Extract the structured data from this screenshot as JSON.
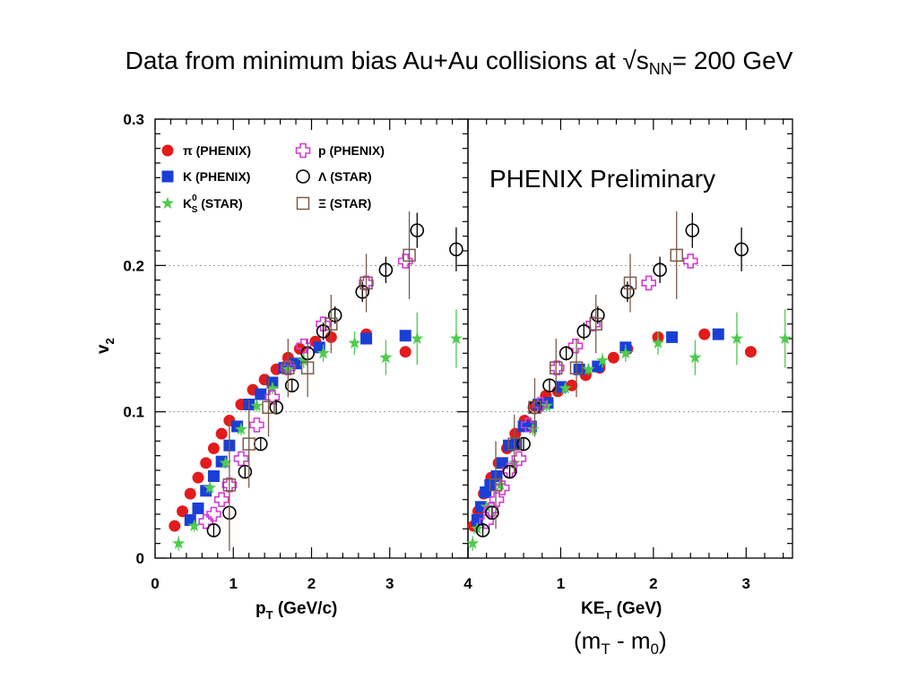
{
  "title": {
    "main": "Data from minimum bias Au+Au collisions at √s",
    "sub": "NN",
    "tail": "= 200 GeV"
  },
  "annotation": "PHENIX Preliminary",
  "footnote": {
    "a": "(m",
    "sub1": "T",
    "b": " - m",
    "sub2": "0",
    "c": ")"
  },
  "colors": {
    "pi": "#e31b1b",
    "K": "#1a3fd6",
    "K0s": "#4ecb4e",
    "p": "#d63ad6",
    "Lambda": "#000000",
    "Xi": "#7a5c4a"
  },
  "chart_data": [
    {
      "type": "scatter",
      "xlabel": "p",
      "xlabel_sub": "T",
      "xlabel_unit": " (GeV/c)",
      "ylabel": "v",
      "ylabel_sub": "2",
      "xlim": [
        0,
        4
      ],
      "ylim": [
        0,
        0.3
      ],
      "xticks": [
        "0",
        "1",
        "2",
        "3",
        "4"
      ],
      "yticks": [
        "0",
        "0.1",
        "0.2",
        "0.3"
      ],
      "legend": [
        {
          "key": "pi",
          "label": "π (PHENIX)"
        },
        {
          "key": "K",
          "label": "K (PHENIX)"
        },
        {
          "key": "K0s",
          "label": "K",
          "sub": "S",
          "sup": "0",
          "tail": " (STAR)"
        },
        {
          "key": "p",
          "label": "p (PHENIX)"
        },
        {
          "key": "Lambda",
          "label": "Λ (STAR)"
        },
        {
          "key": "Xi",
          "label": "Ξ (STAR)"
        }
      ],
      "series": [
        {
          "key": "pi",
          "marker": "circle-filled",
          "x": [
            0.25,
            0.35,
            0.45,
            0.55,
            0.65,
            0.75,
            0.85,
            0.95,
            1.1,
            1.25,
            1.4,
            1.55,
            1.7,
            1.85,
            2.05,
            2.25,
            2.7,
            3.2
          ],
          "y": [
            0.022,
            0.032,
            0.044,
            0.055,
            0.065,
            0.075,
            0.085,
            0.094,
            0.105,
            0.115,
            0.122,
            0.129,
            0.137,
            0.143,
            0.148,
            0.151,
            0.153,
            0.141
          ]
        },
        {
          "key": "K",
          "marker": "square-filled",
          "x": [
            0.45,
            0.55,
            0.65,
            0.75,
            0.85,
            0.95,
            1.05,
            1.2,
            1.35,
            1.5,
            1.65,
            1.8,
            2.1,
            2.7,
            3.2
          ],
          "y": [
            0.026,
            0.034,
            0.046,
            0.056,
            0.066,
            0.077,
            0.09,
            0.105,
            0.112,
            0.12,
            0.13,
            0.133,
            0.144,
            0.15,
            0.152
          ]
        },
        {
          "key": "K0s",
          "marker": "star",
          "x": [
            0.3,
            0.5,
            0.7,
            0.9,
            1.1,
            1.3,
            1.5,
            1.7,
            1.9,
            2.15,
            2.55,
            2.95,
            3.35,
            3.85
          ],
          "y": [
            0.01,
            0.022,
            0.048,
            0.065,
            0.088,
            0.104,
            0.116,
            0.129,
            0.135,
            0.14,
            0.147,
            0.137,
            0.15,
            0.15
          ],
          "yerr": [
            0.005,
            0.004,
            0.004,
            0.004,
            0.004,
            0.004,
            0.004,
            0.004,
            0.005,
            0.006,
            0.008,
            0.012,
            0.018,
            0.02
          ]
        },
        {
          "key": "p",
          "marker": "cross-open",
          "x": [
            0.65,
            0.75,
            0.85,
            0.95,
            1.1,
            1.3,
            1.5,
            1.7,
            1.9,
            2.15,
            2.7,
            3.2
          ],
          "y": [
            0.025,
            0.03,
            0.04,
            0.05,
            0.068,
            0.091,
            0.11,
            0.13,
            0.145,
            0.16,
            0.188,
            0.203
          ]
        },
        {
          "key": "Lambda",
          "marker": "circle-open",
          "x": [
            0.75,
            0.95,
            1.15,
            1.35,
            1.55,
            1.75,
            1.95,
            2.15,
            2.3,
            2.65,
            2.95,
            3.35,
            3.85
          ],
          "y": [
            0.019,
            0.031,
            0.059,
            0.078,
            0.103,
            0.118,
            0.14,
            0.155,
            0.166,
            0.182,
            0.197,
            0.224,
            0.211
          ],
          "yerr": [
            0.004,
            0.004,
            0.004,
            0.004,
            0.004,
            0.004,
            0.005,
            0.006,
            0.006,
            0.007,
            0.009,
            0.012,
            0.015
          ]
        },
        {
          "key": "Xi",
          "marker": "square-open",
          "x": [
            0.95,
            1.2,
            1.45,
            1.7,
            1.95,
            2.25,
            2.7,
            3.25
          ],
          "y": [
            0.05,
            0.078,
            0.103,
            0.13,
            0.13,
            0.16,
            0.188,
            0.207
          ],
          "yerr": [
            0.045,
            0.03,
            0.02,
            0.02,
            0.02,
            0.02,
            0.02,
            0.03
          ]
        }
      ]
    },
    {
      "type": "scatter",
      "xlabel": "KE",
      "xlabel_sub": "T",
      "xlabel_unit": " (GeV)",
      "xlim": [
        0,
        3.5
      ],
      "ylim": [
        0,
        0.3
      ],
      "xticks": [
        "1",
        "2",
        "3"
      ],
      "xtick_values": [
        1,
        2,
        3
      ],
      "series": [
        {
          "key": "pi",
          "marker": "circle-filled",
          "x": [
            0.06,
            0.11,
            0.17,
            0.25,
            0.33,
            0.42,
            0.51,
            0.61,
            0.72,
            0.84,
            0.97,
            1.12,
            1.27,
            1.42,
            1.57,
            1.72,
            2.05,
            2.55,
            3.05
          ],
          "y": [
            0.022,
            0.032,
            0.044,
            0.055,
            0.065,
            0.075,
            0.085,
            0.094,
            0.104,
            0.111,
            0.114,
            0.118,
            0.125,
            0.13,
            0.137,
            0.143,
            0.151,
            0.153,
            0.141
          ]
        },
        {
          "key": "K",
          "marker": "square-filled",
          "x": [
            0.1,
            0.14,
            0.19,
            0.24,
            0.31,
            0.37,
            0.44,
            0.52,
            0.6,
            0.68,
            0.76,
            0.86,
            1.0,
            1.2,
            1.4,
            1.7,
            2.2,
            2.7
          ],
          "y": [
            0.026,
            0.035,
            0.045,
            0.05,
            0.056,
            0.065,
            0.077,
            0.078,
            0.09,
            0.09,
            0.105,
            0.106,
            0.117,
            0.129,
            0.131,
            0.144,
            0.151,
            0.153
          ]
        },
        {
          "key": "K0s",
          "marker": "star",
          "x": [
            0.05,
            0.1,
            0.2,
            0.35,
            0.5,
            0.7,
            0.85,
            1.05,
            1.3,
            1.45,
            1.7,
            2.05,
            2.45,
            2.9,
            3.42
          ],
          "y": [
            0.01,
            0.02,
            0.035,
            0.05,
            0.065,
            0.088,
            0.104,
            0.116,
            0.129,
            0.135,
            0.14,
            0.147,
            0.137,
            0.15,
            0.15
          ],
          "yerr": [
            0.005,
            0.004,
            0.004,
            0.004,
            0.004,
            0.004,
            0.004,
            0.004,
            0.004,
            0.005,
            0.006,
            0.008,
            0.012,
            0.018,
            0.02
          ]
        },
        {
          "key": "p",
          "marker": "cross-open",
          "x": [
            0.2,
            0.25,
            0.31,
            0.37,
            0.45,
            0.55,
            0.65,
            0.78,
            0.96,
            1.16,
            1.35,
            1.95,
            2.4
          ],
          "y": [
            0.025,
            0.033,
            0.04,
            0.048,
            0.06,
            0.068,
            0.091,
            0.105,
            0.13,
            0.145,
            0.16,
            0.188,
            0.203
          ]
        },
        {
          "key": "Lambda",
          "marker": "circle-open",
          "x": [
            0.16,
            0.26,
            0.45,
            0.6,
            0.72,
            0.88,
            1.06,
            1.25,
            1.4,
            1.72,
            2.07,
            2.42,
            2.95
          ],
          "y": [
            0.019,
            0.031,
            0.059,
            0.078,
            0.103,
            0.118,
            0.14,
            0.155,
            0.166,
            0.182,
            0.197,
            0.224,
            0.211
          ],
          "yerr": [
            0.004,
            0.004,
            0.004,
            0.004,
            0.004,
            0.004,
            0.005,
            0.006,
            0.006,
            0.007,
            0.009,
            0.012,
            0.015
          ]
        },
        {
          "key": "Xi",
          "marker": "square-open",
          "x": [
            0.3,
            0.5,
            0.72,
            0.95,
            1.17,
            1.38,
            1.75,
            2.25
          ],
          "y": [
            0.05,
            0.078,
            0.103,
            0.13,
            0.13,
            0.16,
            0.188,
            0.207
          ],
          "yerr": [
            0.03,
            0.02,
            0.02,
            0.02,
            0.02,
            0.02,
            0.02,
            0.03
          ]
        }
      ]
    }
  ]
}
